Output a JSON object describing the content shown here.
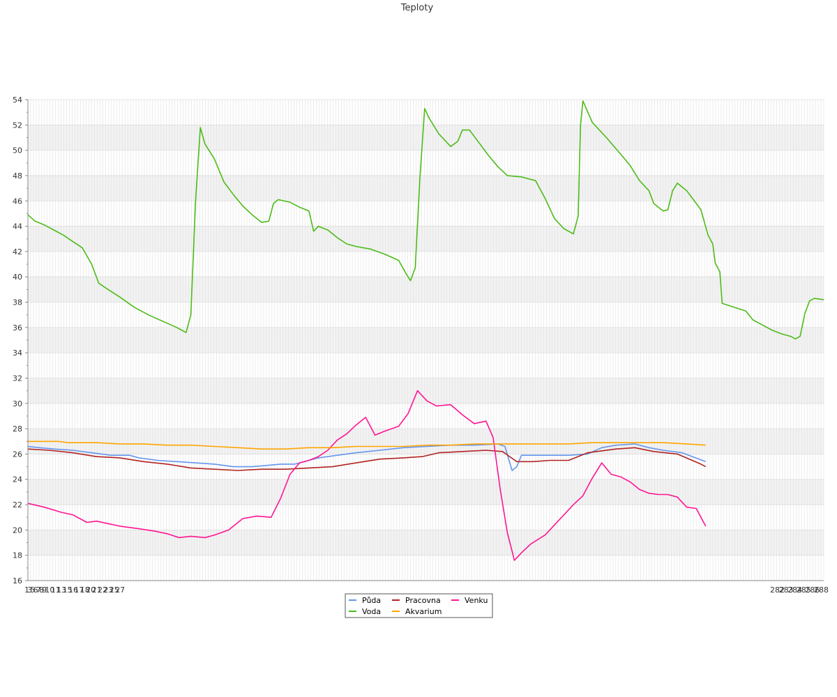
{
  "chart_data": {
    "type": "line",
    "title": "Teploty",
    "xlabel": "",
    "ylabel": "",
    "ylim": [
      16,
      54
    ],
    "yticks": [
      16,
      18,
      20,
      22,
      24,
      26,
      28,
      30,
      32,
      34,
      36,
      38,
      40,
      42,
      44,
      46,
      48,
      50,
      52,
      54
    ],
    "x_first_labels": [
      "1",
      "3",
      "5",
      "6",
      "7",
      "8",
      "9",
      "10",
      "11",
      "13",
      "15",
      "16",
      "17",
      "18",
      "20",
      "21",
      "22",
      "23",
      "25",
      "27"
    ],
    "x_last_labels": [
      "282",
      "283",
      "284",
      "285",
      "286",
      "288"
    ],
    "x_count": 288,
    "grid": true,
    "legend_position": "bottom-center",
    "series": [
      {
        "name": "Půda",
        "color": "#6495ed",
        "points": [
          [
            1,
            26.6
          ],
          [
            6,
            26.5
          ],
          [
            12,
            26.4
          ],
          [
            20,
            26.3
          ],
          [
            28,
            26.1
          ],
          [
            36,
            25.9
          ],
          [
            44,
            25.9
          ],
          [
            48,
            25.7
          ],
          [
            56,
            25.5
          ],
          [
            64,
            25.4
          ],
          [
            72,
            25.3
          ],
          [
            80,
            25.2
          ],
          [
            88,
            25.0
          ],
          [
            96,
            25.0
          ],
          [
            102,
            25.1
          ],
          [
            108,
            25.2
          ],
          [
            114,
            25.2
          ],
          [
            118,
            25.4
          ],
          [
            124,
            25.7
          ],
          [
            132,
            25.9
          ],
          [
            140,
            26.1
          ],
          [
            150,
            26.3
          ],
          [
            160,
            26.5
          ],
          [
            170,
            26.6
          ],
          [
            180,
            26.7
          ],
          [
            190,
            26.7
          ],
          [
            200,
            26.8
          ],
          [
            203,
            26.6
          ],
          [
            206,
            24.7
          ],
          [
            208,
            25.0
          ],
          [
            210,
            25.9
          ],
          [
            220,
            25.9
          ],
          [
            230,
            25.9
          ],
          [
            238,
            26.0
          ],
          [
            244,
            26.5
          ],
          [
            250,
            26.7
          ],
          [
            258,
            26.8
          ],
          [
            264,
            26.5
          ],
          [
            270,
            26.3
          ],
          [
            278,
            26.1
          ],
          [
            288,
            25.4
          ]
        ]
      },
      {
        "name": "Pracovna",
        "color": "#b22222",
        "points": [
          [
            1,
            26.4
          ],
          [
            10,
            26.3
          ],
          [
            20,
            26.1
          ],
          [
            30,
            25.8
          ],
          [
            40,
            25.7
          ],
          [
            50,
            25.4
          ],
          [
            60,
            25.2
          ],
          [
            70,
            24.9
          ],
          [
            80,
            24.8
          ],
          [
            90,
            24.7
          ],
          [
            100,
            24.8
          ],
          [
            110,
            24.8
          ],
          [
            120,
            24.9
          ],
          [
            130,
            25.0
          ],
          [
            140,
            25.3
          ],
          [
            150,
            25.6
          ],
          [
            160,
            25.7
          ],
          [
            168,
            25.8
          ],
          [
            175,
            26.1
          ],
          [
            185,
            26.2
          ],
          [
            195,
            26.3
          ],
          [
            202,
            26.2
          ],
          [
            205,
            25.8
          ],
          [
            208,
            25.4
          ],
          [
            215,
            25.4
          ],
          [
            222,
            25.5
          ],
          [
            230,
            25.5
          ],
          [
            238,
            26.1
          ],
          [
            250,
            26.4
          ],
          [
            258,
            26.5
          ],
          [
            266,
            26.2
          ],
          [
            276,
            26.0
          ],
          [
            286,
            25.2
          ],
          [
            288,
            25.0
          ]
        ]
      },
      {
        "name": "Venku",
        "color": "#ff1493",
        "points": [
          [
            1,
            22.1
          ],
          [
            8,
            21.8
          ],
          [
            15,
            21.4
          ],
          [
            20,
            21.2
          ],
          [
            26,
            20.6
          ],
          [
            30,
            20.7
          ],
          [
            35,
            20.5
          ],
          [
            40,
            20.3
          ],
          [
            48,
            20.1
          ],
          [
            55,
            19.9
          ],
          [
            60,
            19.7
          ],
          [
            65,
            19.4
          ],
          [
            70,
            19.5
          ],
          [
            76,
            19.4
          ],
          [
            80,
            19.6
          ],
          [
            86,
            20.0
          ],
          [
            92,
            20.9
          ],
          [
            98,
            21.1
          ],
          [
            104,
            21.0
          ],
          [
            108,
            22.5
          ],
          [
            112,
            24.4
          ],
          [
            116,
            25.3
          ],
          [
            120,
            25.5
          ],
          [
            124,
            25.8
          ],
          [
            128,
            26.3
          ],
          [
            132,
            27.1
          ],
          [
            136,
            27.6
          ],
          [
            140,
            28.3
          ],
          [
            144,
            28.9
          ],
          [
            148,
            27.5
          ],
          [
            152,
            27.8
          ],
          [
            158,
            28.2
          ],
          [
            162,
            29.2
          ],
          [
            166,
            31.0
          ],
          [
            170,
            30.2
          ],
          [
            174,
            29.8
          ],
          [
            180,
            29.9
          ],
          [
            185,
            29.1
          ],
          [
            190,
            28.4
          ],
          [
            195,
            28.6
          ],
          [
            198,
            27.3
          ],
          [
            201,
            23.2
          ],
          [
            204,
            19.8
          ],
          [
            207,
            17.6
          ],
          [
            210,
            18.2
          ],
          [
            214,
            18.9
          ],
          [
            220,
            19.6
          ],
          [
            226,
            20.8
          ],
          [
            232,
            22.0
          ],
          [
            236,
            22.7
          ],
          [
            240,
            24.1
          ],
          [
            244,
            25.3
          ],
          [
            248,
            24.4
          ],
          [
            252,
            24.2
          ],
          [
            256,
            23.8
          ],
          [
            260,
            23.2
          ],
          [
            264,
            22.9
          ],
          [
            268,
            22.8
          ],
          [
            272,
            22.8
          ],
          [
            276,
            22.6
          ],
          [
            280,
            21.8
          ],
          [
            284,
            21.7
          ],
          [
            288,
            20.3
          ]
        ]
      },
      {
        "name": "Voda",
        "color": "#4cbb17",
        "points": [
          [
            1,
            44.9
          ],
          [
            4,
            44.4
          ],
          [
            8,
            44.1
          ],
          [
            12,
            43.7
          ],
          [
            16,
            43.3
          ],
          [
            20,
            42.8
          ],
          [
            24,
            42.3
          ],
          [
            28,
            41.0
          ],
          [
            31,
            39.5
          ],
          [
            35,
            39.0
          ],
          [
            40,
            38.4
          ],
          [
            46,
            37.6
          ],
          [
            52,
            37.0
          ],
          [
            58,
            36.5
          ],
          [
            64,
            36.0
          ],
          [
            68,
            35.6
          ],
          [
            70,
            37.0
          ],
          [
            72,
            46.0
          ],
          [
            74,
            51.8
          ],
          [
            76,
            50.5
          ],
          [
            80,
            49.3
          ],
          [
            84,
            47.5
          ],
          [
            88,
            46.5
          ],
          [
            92,
            45.6
          ],
          [
            96,
            44.9
          ],
          [
            100,
            44.3
          ],
          [
            103,
            44.4
          ],
          [
            105,
            45.8
          ],
          [
            107,
            46.1
          ],
          [
            112,
            45.9
          ],
          [
            116,
            45.5
          ],
          [
            120,
            45.2
          ],
          [
            122,
            43.6
          ],
          [
            124,
            44.0
          ],
          [
            128,
            43.7
          ],
          [
            132,
            43.1
          ],
          [
            136,
            42.6
          ],
          [
            140,
            42.4
          ],
          [
            146,
            42.2
          ],
          [
            152,
            41.8
          ],
          [
            158,
            41.3
          ],
          [
            161,
            40.3
          ],
          [
            163,
            39.7
          ],
          [
            165,
            40.7
          ],
          [
            167,
            47.8
          ],
          [
            169,
            53.3
          ],
          [
            171,
            52.5
          ],
          [
            175,
            51.3
          ],
          [
            180,
            50.3
          ],
          [
            183,
            50.7
          ],
          [
            185,
            51.6
          ],
          [
            188,
            51.6
          ],
          [
            192,
            50.6
          ],
          [
            196,
            49.6
          ],
          [
            200,
            48.7
          ],
          [
            204,
            48.0
          ],
          [
            210,
            47.9
          ],
          [
            216,
            47.6
          ],
          [
            220,
            46.2
          ],
          [
            224,
            44.6
          ],
          [
            228,
            43.8
          ],
          [
            232,
            43.4
          ],
          [
            234,
            44.8
          ],
          [
            235,
            52.0
          ],
          [
            236,
            53.9
          ],
          [
            240,
            52.2
          ],
          [
            246,
            51.0
          ],
          [
            252,
            49.7
          ],
          [
            256,
            48.8
          ],
          [
            260,
            47.6
          ],
          [
            264,
            46.8
          ],
          [
            266,
            45.8
          ],
          [
            270,
            45.2
          ],
          [
            272,
            45.3
          ],
          [
            274,
            46.8
          ],
          [
            276,
            47.4
          ],
          [
            280,
            46.8
          ],
          [
            284,
            45.8
          ],
          [
            286,
            45.3
          ],
          [
            289,
            43.3
          ],
          [
            291,
            42.6
          ],
          [
            292,
            41.1
          ],
          [
            294,
            40.4
          ],
          [
            295,
            37.9
          ],
          [
            300,
            37.6
          ],
          [
            305,
            37.3
          ],
          [
            308,
            36.6
          ],
          [
            312,
            36.2
          ],
          [
            316,
            35.8
          ],
          [
            320,
            35.5
          ],
          [
            324,
            35.3
          ],
          [
            326,
            35.1
          ],
          [
            328,
            35.3
          ],
          [
            330,
            37.1
          ],
          [
            332,
            38.1
          ],
          [
            334,
            38.3
          ],
          [
            338,
            38.2
          ]
        ]
      },
      {
        "name": "Akvarium",
        "color": "#ffa500",
        "points": [
          [
            1,
            27.0
          ],
          [
            10,
            27.0
          ],
          [
            14,
            27.0
          ],
          [
            18,
            26.9
          ],
          [
            30,
            26.9
          ],
          [
            40,
            26.8
          ],
          [
            50,
            26.8
          ],
          [
            60,
            26.7
          ],
          [
            70,
            26.7
          ],
          [
            80,
            26.6
          ],
          [
            90,
            26.5
          ],
          [
            100,
            26.4
          ],
          [
            110,
            26.4
          ],
          [
            120,
            26.5
          ],
          [
            130,
            26.5
          ],
          [
            140,
            26.6
          ],
          [
            150,
            26.6
          ],
          [
            160,
            26.6
          ],
          [
            170,
            26.7
          ],
          [
            180,
            26.7
          ],
          [
            190,
            26.8
          ],
          [
            200,
            26.8
          ],
          [
            210,
            26.8
          ],
          [
            220,
            26.8
          ],
          [
            230,
            26.8
          ],
          [
            240,
            26.9
          ],
          [
            250,
            26.9
          ],
          [
            260,
            26.9
          ],
          [
            270,
            26.9
          ],
          [
            280,
            26.8
          ],
          [
            288,
            26.7
          ]
        ]
      }
    ]
  }
}
